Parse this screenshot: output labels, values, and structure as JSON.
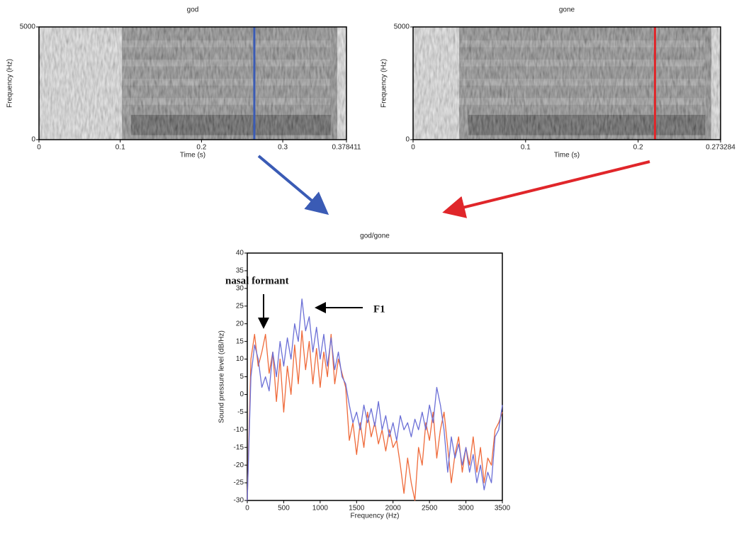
{
  "chart_data": [
    {
      "type": "spectrogram",
      "title": "god",
      "x_label": "Time (s)",
      "y_label": "Frequency (Hz)",
      "xlim": [
        0,
        0.378411
      ],
      "xticks": [
        0,
        0.1,
        0.2,
        0.3,
        0.378411
      ],
      "ylim": [
        0,
        5000
      ],
      "yticks": [
        0,
        5000
      ],
      "cursor": 0.265,
      "cursor_color": "#3a5bb5"
    },
    {
      "type": "spectrogram",
      "title": "gone",
      "x_label": "Time (s)",
      "y_label": "Frequency (Hz)",
      "xlim": [
        0,
        0.273284
      ],
      "xticks": [
        0,
        0.1,
        0.2,
        0.273284
      ],
      "ylim": [
        0,
        5000
      ],
      "yticks": [
        0,
        5000
      ],
      "cursor": 0.215,
      "cursor_color": "#e0262a"
    },
    {
      "type": "line",
      "title": "god/gone",
      "x_label": "Frequency (Hz)",
      "y_label": "Sound pressure level (dB/Hz)",
      "xlim": [
        0,
        3500
      ],
      "xticks": [
        0,
        500,
        1000,
        1500,
        2000,
        2500,
        3000,
        3500
      ],
      "ylim": [
        -30,
        40
      ],
      "yticks": [
        -30,
        -25,
        -20,
        -15,
        -10,
        -5,
        0,
        5,
        10,
        15,
        20,
        25,
        30,
        35,
        40
      ],
      "annotations": [
        "nasal formant",
        "F1"
      ],
      "x": [
        0,
        50,
        100,
        150,
        200,
        250,
        300,
        350,
        400,
        450,
        500,
        550,
        600,
        650,
        700,
        750,
        800,
        850,
        900,
        950,
        1000,
        1050,
        1100,
        1150,
        1200,
        1250,
        1300,
        1350,
        1400,
        1450,
        1500,
        1550,
        1600,
        1650,
        1700,
        1750,
        1800,
        1850,
        1900,
        1950,
        2000,
        2050,
        2100,
        2150,
        2200,
        2250,
        2300,
        2350,
        2400,
        2450,
        2500,
        2550,
        2600,
        2650,
        2700,
        2750,
        2800,
        2850,
        2900,
        2950,
        3000,
        3050,
        3100,
        3150,
        3200,
        3250,
        3300,
        3350,
        3400,
        3450,
        3500
      ],
      "series": [
        {
          "color": "#ef6a3a",
          "values": [
            -30,
            10,
            17,
            8,
            12,
            17,
            6,
            12,
            -2,
            10,
            -5,
            8,
            0,
            14,
            3,
            18,
            7,
            15,
            3,
            13,
            2,
            12,
            5,
            17,
            3,
            10,
            6,
            2,
            -13,
            -8,
            -17,
            -8,
            -15,
            -5,
            -12,
            -8,
            -14,
            -10,
            -16,
            -10,
            -15,
            -13,
            -20,
            -28,
            -18,
            -25,
            -30,
            -15,
            -20,
            -8,
            -13,
            -5,
            -18,
            -10,
            -5,
            -15,
            -25,
            -17,
            -12,
            -22,
            -15,
            -20,
            -12,
            -22,
            -15,
            -25,
            -18,
            -20,
            -10,
            -8,
            -5
          ]
        },
        {
          "color": "#6b6fd6",
          "values": [
            -30,
            5,
            14,
            10,
            2,
            5,
            1,
            12,
            5,
            15,
            8,
            16,
            10,
            20,
            15,
            27,
            18,
            22,
            12,
            19,
            10,
            17,
            8,
            16,
            7,
            12,
            5,
            3,
            -3,
            -8,
            -5,
            -10,
            -3,
            -8,
            -4,
            -9,
            -2,
            -10,
            -6,
            -12,
            -8,
            -13,
            -6,
            -10,
            -8,
            -12,
            -7,
            -10,
            -5,
            -10,
            -3,
            -8,
            2,
            -3,
            -10,
            -22,
            -12,
            -18,
            -14,
            -20,
            -15,
            -22,
            -17,
            -25,
            -20,
            -27,
            -22,
            -25,
            -12,
            -10,
            -3
          ]
        }
      ]
    }
  ]
}
